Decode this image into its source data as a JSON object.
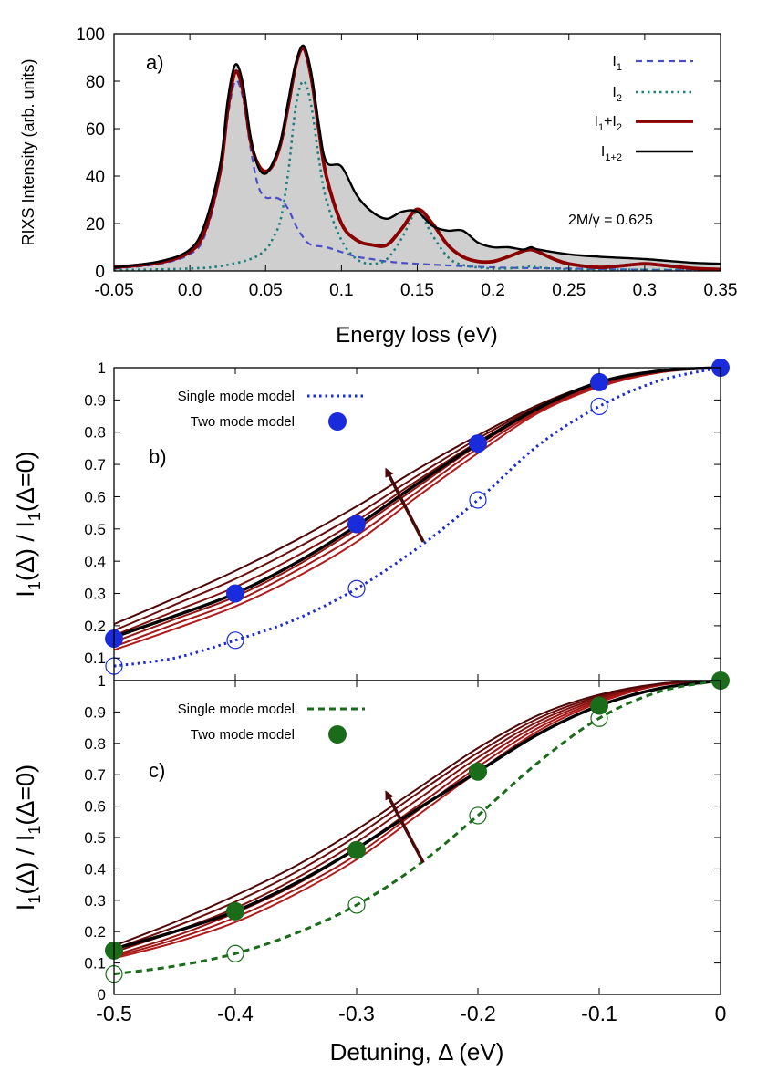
{
  "chart_data": [
    {
      "type": "line",
      "panel_label": "a)",
      "xlabel": "Energy loss (eV)",
      "ylabel": "RIXS Intensity (arb. units)",
      "xlim": [
        -0.05,
        0.35
      ],
      "ylim": [
        0,
        100
      ],
      "xticks": [
        "-0.05",
        "0.0",
        "0.05",
        "0.1",
        "0.15",
        "0.2",
        "0.25",
        "0.3",
        "0.35"
      ],
      "yticks": [
        "0",
        "20",
        "40",
        "60",
        "80",
        "100"
      ],
      "annotation": "2M/γ = 0.625",
      "legend_position": "top-right",
      "series": [
        {
          "name": "I1",
          "label_main": "I",
          "label_sub": "1",
          "style": "dashed",
          "color": "#4a4fc8",
          "x": [
            -0.05,
            -0.02,
            0.0,
            0.01,
            0.02,
            0.025,
            0.03,
            0.035,
            0.04,
            0.045,
            0.05,
            0.055,
            0.06,
            0.065,
            0.07,
            0.075,
            0.08,
            0.09,
            0.1,
            0.11,
            0.12,
            0.13,
            0.15,
            0.2,
            0.25,
            0.3,
            0.35
          ],
          "y": [
            1,
            3,
            7,
            15,
            40,
            65,
            80,
            73,
            52,
            36,
            31,
            31,
            30,
            26,
            19,
            14,
            11,
            10,
            8,
            6,
            5,
            4,
            3,
            1.5,
            1,
            0.5,
            0.3
          ]
        },
        {
          "name": "I2",
          "label_main": "I",
          "label_sub": "2",
          "style": "dotted",
          "color": "#1f7f7f",
          "x": [
            -0.05,
            0.0,
            0.02,
            0.04,
            0.05,
            0.055,
            0.06,
            0.065,
            0.07,
            0.075,
            0.08,
            0.085,
            0.09,
            0.1,
            0.11,
            0.12,
            0.13,
            0.14,
            0.15,
            0.16,
            0.17,
            0.18,
            0.2,
            0.22,
            0.225,
            0.23,
            0.25,
            0.3,
            0.35
          ],
          "y": [
            0.3,
            1,
            2,
            5,
            9,
            14,
            22,
            42,
            70,
            80,
            70,
            48,
            30,
            13,
            5,
            3,
            5,
            14,
            25,
            15,
            6,
            2.5,
            1,
            1.5,
            2,
            1.5,
            0.7,
            0.5,
            0.3
          ]
        },
        {
          "name": "I1+I2",
          "label_main": "I",
          "label_sub": "1",
          "label_mid": "+I",
          "label_sub2": "2",
          "style": "solid-thick",
          "color": "#8b0000",
          "x": [
            -0.05,
            -0.02,
            0.0,
            0.01,
            0.02,
            0.025,
            0.03,
            0.035,
            0.04,
            0.045,
            0.05,
            0.055,
            0.06,
            0.065,
            0.07,
            0.075,
            0.08,
            0.085,
            0.09,
            0.1,
            0.11,
            0.12,
            0.13,
            0.14,
            0.15,
            0.16,
            0.17,
            0.18,
            0.19,
            0.2,
            0.21,
            0.22,
            0.225,
            0.23,
            0.24,
            0.25,
            0.27,
            0.29,
            0.3,
            0.31,
            0.33,
            0.35
          ],
          "y": [
            1.5,
            3.5,
            8,
            17,
            42,
            68,
            84,
            76,
            55,
            45,
            42,
            45,
            54,
            70,
            87,
            94,
            82,
            60,
            40,
            20,
            13,
            11,
            11,
            18,
            26,
            20,
            11,
            6,
            4,
            4,
            6,
            8.5,
            9,
            8,
            5,
            3,
            1.5,
            2.5,
            3,
            2.5,
            1.2,
            0.6
          ]
        },
        {
          "name": "I1+2",
          "label_main": "I",
          "label_sub": "1+2",
          "style": "solid",
          "color": "#000000",
          "x": [
            -0.05,
            -0.02,
            0.0,
            0.01,
            0.02,
            0.025,
            0.03,
            0.035,
            0.04,
            0.045,
            0.05,
            0.055,
            0.06,
            0.065,
            0.07,
            0.075,
            0.08,
            0.085,
            0.09,
            0.1,
            0.11,
            0.12,
            0.13,
            0.14,
            0.15,
            0.16,
            0.17,
            0.18,
            0.19,
            0.2,
            0.21,
            0.22,
            0.225,
            0.23,
            0.25,
            0.27,
            0.3,
            0.33,
            0.35
          ],
          "y": [
            1.5,
            4,
            9,
            20,
            45,
            72,
            87,
            79,
            57,
            44,
            41,
            46,
            55,
            72,
            88,
            95,
            84,
            62,
            46,
            44,
            32,
            25,
            22,
            25,
            25,
            19,
            17,
            17,
            12,
            10,
            10,
            9,
            10,
            9,
            7,
            6,
            5,
            3.5,
            3
          ]
        }
      ]
    },
    {
      "type": "line",
      "panel_label": "b)",
      "ylabel_main": "I",
      "ylabel_sub": "1",
      "ylabel_rest": "(Δ) / I",
      "ylabel_sub2": "1",
      "ylabel_end": "(Δ=0)",
      "xlim": [
        -0.5,
        0
      ],
      "ylim": [
        0.03,
        1
      ],
      "yticks": [
        "0.1",
        "0.2",
        "0.3",
        "0.4",
        "0.5",
        "0.6",
        "0.7",
        "0.8",
        "0.9",
        "1"
      ],
      "legend": [
        {
          "label": "Single mode model",
          "style": "dotted",
          "color": "#1a2bdc"
        },
        {
          "label": "Two mode model",
          "style": "filled-circle",
          "color": "#1a2bdc"
        }
      ],
      "legend_position": "top-left",
      "single_mode": {
        "x": [
          -0.5,
          -0.45,
          -0.4,
          -0.35,
          -0.3,
          -0.25,
          -0.2,
          -0.15,
          -0.1,
          -0.05,
          0
        ],
        "y": [
          0.075,
          0.1,
          0.155,
          0.22,
          0.315,
          0.44,
          0.59,
          0.76,
          0.88,
          0.96,
          1.0
        ]
      },
      "single_mode_points": {
        "x": [
          -0.5,
          -0.4,
          -0.3,
          -0.2,
          -0.1
        ],
        "y": [
          0.075,
          0.155,
          0.315,
          0.59,
          0.88
        ]
      },
      "two_mode": {
        "x": [
          -0.5,
          -0.45,
          -0.4,
          -0.35,
          -0.3,
          -0.25,
          -0.2,
          -0.15,
          -0.1,
          -0.05,
          0
        ],
        "y": [
          0.165,
          0.23,
          0.3,
          0.395,
          0.51,
          0.64,
          0.765,
          0.875,
          0.955,
          0.99,
          1.0
        ]
      },
      "two_mode_points": {
        "x": [
          -0.5,
          -0.4,
          -0.3,
          -0.2,
          -0.1,
          0
        ],
        "y": [
          0.16,
          0.3,
          0.515,
          0.765,
          0.955,
          1.0
        ]
      },
      "family": [
        {
          "color": "#b31b1b",
          "y": [
            0.125,
            0.19,
            0.26,
            0.35,
            0.46,
            0.6,
            0.735,
            0.86,
            0.94,
            0.985,
            1.0
          ]
        },
        {
          "color": "#a51717",
          "y": [
            0.135,
            0.205,
            0.275,
            0.37,
            0.48,
            0.615,
            0.75,
            0.865,
            0.945,
            0.987,
            1.0
          ]
        },
        {
          "color": "#961414",
          "y": [
            0.15,
            0.22,
            0.29,
            0.385,
            0.5,
            0.63,
            0.76,
            0.87,
            0.95,
            0.988,
            1.0
          ]
        },
        {
          "color": "#7f1010",
          "y": [
            0.17,
            0.245,
            0.32,
            0.415,
            0.525,
            0.65,
            0.77,
            0.875,
            0.95,
            0.99,
            1.0
          ]
        },
        {
          "color": "#6a0c0c",
          "y": [
            0.185,
            0.265,
            0.345,
            0.44,
            0.545,
            0.665,
            0.78,
            0.88,
            0.952,
            0.99,
            1.0
          ]
        },
        {
          "color": "#4f0808",
          "y": [
            0.205,
            0.285,
            0.37,
            0.465,
            0.57,
            0.685,
            0.79,
            0.885,
            0.955,
            0.99,
            1.0
          ]
        }
      ],
      "arrow": {
        "x1": -0.245,
        "y1": 0.46,
        "x2": -0.275,
        "y2": 0.68,
        "color": "#4a0a0a"
      }
    },
    {
      "type": "line",
      "panel_label": "c)",
      "xlabel_main": "Detuning, Δ (eV)",
      "ylabel_main": "I",
      "ylabel_sub": "1",
      "ylabel_rest": "(Δ) / I",
      "ylabel_sub2": "1",
      "ylabel_end": "(Δ=0)",
      "xlim": [
        -0.5,
        0
      ],
      "ylim": [
        0,
        1
      ],
      "xticks": [
        "-0.5",
        "-0.4",
        "-0.3",
        "-0.2",
        "-0.1",
        "0"
      ],
      "yticks": [
        "0",
        "0.1",
        "0.2",
        "0.3",
        "0.4",
        "0.5",
        "0.6",
        "0.7",
        "0.8",
        "0.9",
        "1"
      ],
      "legend": [
        {
          "label": "Single mode model",
          "style": "dashed",
          "color": "#1a6b1a"
        },
        {
          "label": "Two mode model",
          "style": "filled-circle",
          "color": "#1a6b1a"
        }
      ],
      "legend_position": "top-left",
      "single_mode": {
        "x": [
          -0.5,
          -0.45,
          -0.4,
          -0.35,
          -0.3,
          -0.25,
          -0.2,
          -0.15,
          -0.1,
          -0.05,
          0
        ],
        "y": [
          0.065,
          0.09,
          0.13,
          0.195,
          0.285,
          0.41,
          0.57,
          0.74,
          0.88,
          0.965,
          1.0
        ]
      },
      "single_mode_points": {
        "x": [
          -0.5,
          -0.4,
          -0.3,
          -0.2,
          -0.1
        ],
        "y": [
          0.065,
          0.13,
          0.285,
          0.57,
          0.88
        ]
      },
      "two_mode": {
        "x": [
          -0.5,
          -0.45,
          -0.4,
          -0.35,
          -0.3,
          -0.25,
          -0.2,
          -0.15,
          -0.1,
          -0.05,
          0
        ],
        "y": [
          0.145,
          0.2,
          0.265,
          0.355,
          0.465,
          0.59,
          0.71,
          0.83,
          0.92,
          0.975,
          1.0
        ]
      },
      "two_mode_points": {
        "x": [
          -0.5,
          -0.4,
          -0.3,
          -0.2,
          -0.1,
          0
        ],
        "y": [
          0.14,
          0.265,
          0.46,
          0.71,
          0.92,
          1.0
        ]
      },
      "family": [
        {
          "color": "#b31b1b",
          "y": [
            0.115,
            0.165,
            0.23,
            0.32,
            0.43,
            0.57,
            0.71,
            0.84,
            0.93,
            0.985,
            1.0
          ]
        },
        {
          "color": "#a51717",
          "y": [
            0.12,
            0.175,
            0.245,
            0.335,
            0.445,
            0.585,
            0.725,
            0.85,
            0.935,
            0.986,
            1.0
          ]
        },
        {
          "color": "#961414",
          "y": [
            0.125,
            0.185,
            0.26,
            0.35,
            0.465,
            0.6,
            0.74,
            0.86,
            0.94,
            0.987,
            1.0
          ]
        },
        {
          "color": "#7f1010",
          "y": [
            0.135,
            0.2,
            0.275,
            0.37,
            0.485,
            0.62,
            0.755,
            0.87,
            0.945,
            0.988,
            1.0
          ]
        },
        {
          "color": "#6a0c0c",
          "y": [
            0.145,
            0.215,
            0.295,
            0.39,
            0.505,
            0.64,
            0.77,
            0.88,
            0.95,
            0.99,
            1.0
          ]
        },
        {
          "color": "#4f0808",
          "y": [
            0.155,
            0.23,
            0.315,
            0.41,
            0.525,
            0.655,
            0.785,
            0.89,
            0.955,
            0.99,
            1.0
          ]
        }
      ],
      "arrow": {
        "x1": -0.245,
        "y1": 0.42,
        "x2": -0.275,
        "y2": 0.64,
        "color": "#4a0a0a"
      }
    }
  ]
}
